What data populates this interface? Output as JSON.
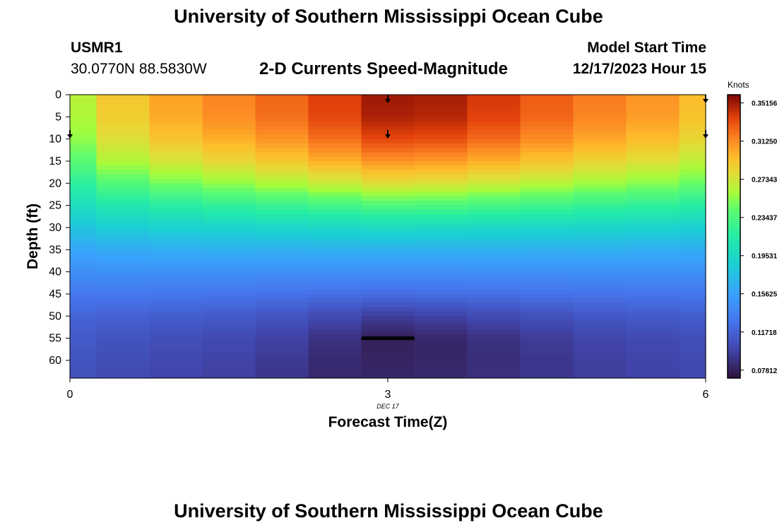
{
  "header": {
    "title": "University of Southern Mississippi Ocean Cube",
    "station_id": "USMR1",
    "coordinates": "30.0770N  88.5830W",
    "subtitle": "2-D Currents Speed-Magnitude",
    "model_start_label": "Model Start Time",
    "model_start_value": "12/17/2023 Hour 15"
  },
  "footer": {
    "title": "University of Southern Mississippi Ocean Cube"
  },
  "chart_data": {
    "type": "heatmap",
    "title": "2-D Currents Speed-Magnitude",
    "xlabel": "Forecast Time(Z)",
    "ylabel": "Depth (ft)",
    "x_ticks": [
      "0",
      "3",
      "6"
    ],
    "x_date_label": "DEC 17",
    "xlim": [
      0,
      6
    ],
    "y_ticks": [
      0,
      5,
      10,
      15,
      20,
      25,
      30,
      35,
      40,
      45,
      50,
      55,
      60
    ],
    "ylim": [
      0,
      64
    ],
    "y_inverted": true,
    "colorbar": {
      "label": "Knots",
      "ticks": [
        "0.35156",
        "0.31250",
        "0.27343",
        "0.23437",
        "0.19531",
        "0.15625",
        "0.11718",
        "0.07812"
      ],
      "min": 0.07,
      "max": 0.36
    },
    "x": [
      0,
      0.5,
      1,
      1.5,
      2,
      2.5,
      3,
      3.5,
      4,
      4.5,
      5,
      5.5,
      6
    ],
    "depth_profile_depths": [
      0,
      5,
      10,
      15,
      20,
      25,
      30,
      35,
      40,
      45,
      50,
      55,
      60,
      64
    ],
    "depth_profile_values": [
      [
        0.265,
        0.262,
        0.255,
        0.24,
        0.22,
        0.2,
        0.18,
        0.16,
        0.145,
        0.13,
        0.118,
        0.112,
        0.108,
        0.106
      ],
      [
        0.29,
        0.287,
        0.278,
        0.262,
        0.238,
        0.21,
        0.185,
        0.163,
        0.146,
        0.13,
        0.116,
        0.108,
        0.104,
        0.102
      ],
      [
        0.305,
        0.302,
        0.292,
        0.274,
        0.248,
        0.217,
        0.189,
        0.165,
        0.146,
        0.129,
        0.114,
        0.105,
        0.101,
        0.099
      ],
      [
        0.315,
        0.312,
        0.301,
        0.282,
        0.255,
        0.222,
        0.191,
        0.166,
        0.146,
        0.128,
        0.112,
        0.102,
        0.098,
        0.096
      ],
      [
        0.325,
        0.322,
        0.31,
        0.29,
        0.262,
        0.226,
        0.193,
        0.166,
        0.145,
        0.126,
        0.108,
        0.097,
        0.093,
        0.091
      ],
      [
        0.338,
        0.335,
        0.322,
        0.3,
        0.27,
        0.231,
        0.195,
        0.167,
        0.145,
        0.125,
        0.102,
        0.088,
        0.084,
        0.083
      ],
      [
        0.352,
        0.349,
        0.335,
        0.31,
        0.278,
        0.236,
        0.197,
        0.167,
        0.144,
        0.123,
        0.095,
        0.078,
        0.08,
        0.082
      ],
      [
        0.35,
        0.347,
        0.333,
        0.308,
        0.276,
        0.235,
        0.196,
        0.167,
        0.144,
        0.124,
        0.098,
        0.082,
        0.082,
        0.084
      ],
      [
        0.34,
        0.337,
        0.324,
        0.301,
        0.271,
        0.232,
        0.195,
        0.167,
        0.145,
        0.125,
        0.102,
        0.088,
        0.086,
        0.087
      ],
      [
        0.328,
        0.325,
        0.313,
        0.292,
        0.264,
        0.228,
        0.193,
        0.166,
        0.145,
        0.126,
        0.106,
        0.094,
        0.091,
        0.091
      ],
      [
        0.318,
        0.315,
        0.304,
        0.284,
        0.258,
        0.224,
        0.192,
        0.166,
        0.146,
        0.127,
        0.11,
        0.099,
        0.096,
        0.095
      ],
      [
        0.31,
        0.307,
        0.296,
        0.278,
        0.253,
        0.221,
        0.19,
        0.165,
        0.146,
        0.128,
        0.112,
        0.102,
        0.099,
        0.098
      ],
      [
        0.296,
        0.293,
        0.283,
        0.267,
        0.245,
        0.216,
        0.188,
        0.164,
        0.146,
        0.129,
        0.114,
        0.105,
        0.102,
        0.101
      ]
    ],
    "vectors": [
      {
        "x": 3,
        "depth": 0
      },
      {
        "x": 3,
        "depth": 8
      },
      {
        "x": 6,
        "depth": 0
      },
      {
        "x": 6,
        "depth": 8
      },
      {
        "x": 0,
        "depth": 8
      }
    ],
    "bottom_marker": {
      "x_start": 2.75,
      "x_end": 3.25,
      "depth": 55
    }
  }
}
